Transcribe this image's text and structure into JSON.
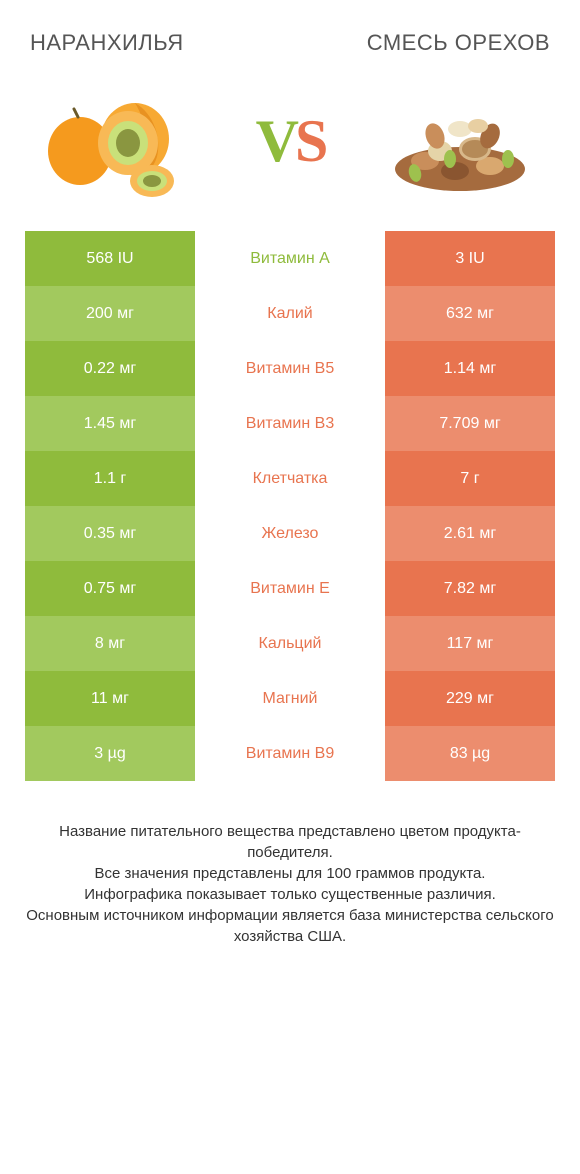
{
  "header": {
    "left_title": "НАРАНХИЛЬЯ",
    "right_title": "СМЕСЬ ОРЕХОВ"
  },
  "vs": {
    "v": "V",
    "s": "S"
  },
  "colors": {
    "green_dark": "#8fbb3c",
    "green_light": "#a2c95e",
    "orange_dark": "#e8744f",
    "orange_light": "#ec8d6e"
  },
  "rows": [
    {
      "left": "568 IU",
      "label": "Витамин A",
      "right": "3 IU",
      "winner": "left"
    },
    {
      "left": "200 мг",
      "label": "Калий",
      "right": "632 мг",
      "winner": "right"
    },
    {
      "left": "0.22 мг",
      "label": "Витамин B5",
      "right": "1.14 мг",
      "winner": "right"
    },
    {
      "left": "1.45 мг",
      "label": "Витамин B3",
      "right": "7.709 мг",
      "winner": "right"
    },
    {
      "left": "1.1 г",
      "label": "Клетчатка",
      "right": "7 г",
      "winner": "right"
    },
    {
      "left": "0.35 мг",
      "label": "Железо",
      "right": "2.61 мг",
      "winner": "right"
    },
    {
      "left": "0.75 мг",
      "label": "Витамин E",
      "right": "7.82 мг",
      "winner": "right"
    },
    {
      "left": "8 мг",
      "label": "Кальций",
      "right": "117 мг",
      "winner": "right"
    },
    {
      "left": "11 мг",
      "label": "Магний",
      "right": "229 мг",
      "winner": "right"
    },
    {
      "left": "3 µg",
      "label": "Витамин B9",
      "right": "83 µg",
      "winner": "right"
    }
  ],
  "footer": {
    "line1": "Название питательного вещества представлено цветом продукта-победителя.",
    "line2": "Все значения представлены для 100 граммов продукта.",
    "line3": "Инфографика показывает только существенные различия.",
    "line4": "Основным источником информации является база министерства сельского хозяйства США."
  }
}
